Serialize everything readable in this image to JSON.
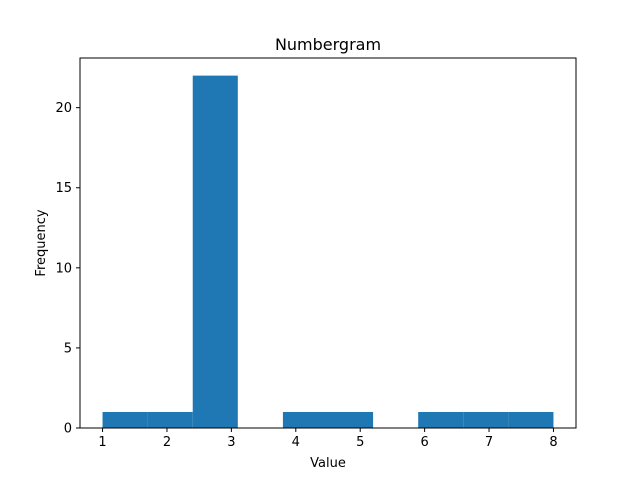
{
  "chart_data": {
    "type": "bar",
    "title": "Numbergram",
    "xlabel": "Value",
    "ylabel": "Frequency",
    "xlim": [
      0.65,
      8.35
    ],
    "ylim": [
      0,
      23.1
    ],
    "x_ticks": [
      1,
      2,
      3,
      4,
      5,
      6,
      7,
      8
    ],
    "y_ticks": [
      0,
      5,
      10,
      15,
      20
    ],
    "bins": [
      {
        "x0": 1.0,
        "x1": 1.7,
        "count": 1
      },
      {
        "x0": 1.7,
        "x1": 2.4,
        "count": 1
      },
      {
        "x0": 2.4,
        "x1": 3.1,
        "count": 22
      },
      {
        "x0": 3.1,
        "x1": 3.8,
        "count": 0
      },
      {
        "x0": 3.8,
        "x1": 4.5,
        "count": 1
      },
      {
        "x0": 4.5,
        "x1": 5.2,
        "count": 1
      },
      {
        "x0": 5.2,
        "x1": 5.9,
        "count": 0
      },
      {
        "x0": 5.9,
        "x1": 6.6,
        "count": 1
      },
      {
        "x0": 6.6,
        "x1": 7.3,
        "count": 1
      },
      {
        "x0": 7.3,
        "x1": 8.0,
        "count": 1
      }
    ],
    "bar_color": "#1f77b4",
    "grid": false,
    "legend": "none"
  }
}
